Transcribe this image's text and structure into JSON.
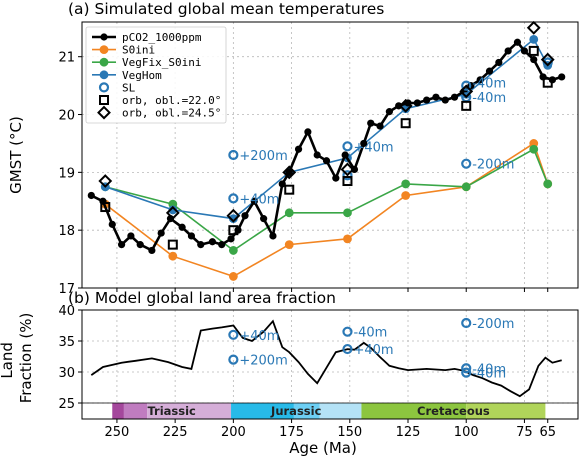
{
  "chart_data": [
    {
      "type": "line",
      "title": "(a) Simulated global mean temperatures",
      "ylabel": "GMST (°C)",
      "xlim": [
        265,
        52
      ],
      "ylim": [
        17,
        21.6
      ],
      "x_reversed": true,
      "y_ticks": [
        17,
        18,
        19,
        20,
        21
      ],
      "grid": true,
      "legend_position": "top-left",
      "series": [
        {
          "name": "pCO2_1000ppm",
          "color": "#000000",
          "marker": "circle",
          "kind": "line",
          "x": [
            261,
            256,
            252,
            248,
            244,
            240,
            235,
            231,
            227,
            222,
            218,
            214,
            209,
            205,
            201,
            198,
            195,
            191,
            187,
            183,
            179,
            176,
            172,
            168,
            164,
            160,
            156,
            152,
            148,
            144,
            141,
            137,
            133,
            129,
            125,
            121,
            117,
            113,
            109,
            105,
            101,
            98,
            94,
            90,
            86,
            82,
            78,
            75,
            71,
            67,
            63,
            59
          ],
          "y": [
            18.6,
            18.5,
            18.1,
            17.75,
            17.9,
            17.75,
            17.65,
            17.95,
            18.2,
            18.05,
            17.9,
            17.75,
            17.8,
            17.75,
            17.85,
            18.0,
            18.25,
            18.5,
            18.2,
            17.9,
            18.8,
            19.0,
            19.4,
            19.7,
            19.3,
            19.2,
            18.9,
            19.3,
            19.05,
            19.5,
            19.85,
            19.8,
            20.05,
            20.15,
            20.2,
            20.2,
            20.25,
            20.3,
            20.25,
            20.3,
            20.4,
            20.5,
            20.6,
            20.75,
            20.9,
            21.1,
            21.25,
            21.1,
            20.95,
            20.65,
            20.6,
            20.65
          ]
        },
        {
          "name": "S0ini",
          "color": "#f28522",
          "marker": "circle",
          "kind": "line",
          "x": [
            255,
            226,
            200,
            176,
            151,
            126,
            100,
            71,
            65
          ],
          "y": [
            18.45,
            17.55,
            17.2,
            17.75,
            17.85,
            18.6,
            18.75,
            19.5,
            18.8
          ]
        },
        {
          "name": "VegFix_S0ini",
          "color": "#3aa647",
          "marker": "circle",
          "kind": "line",
          "x": [
            255,
            226,
            200,
            176,
            151,
            126,
            100,
            71,
            65
          ],
          "y": [
            18.75,
            18.45,
            17.65,
            18.3,
            18.3,
            18.8,
            18.75,
            19.4,
            18.8
          ]
        },
        {
          "name": "VegHom",
          "color": "#2a78b5",
          "marker": "circle",
          "kind": "line",
          "x": [
            255,
            226,
            200,
            176,
            151,
            126,
            100,
            71,
            65
          ],
          "y": [
            18.75,
            18.35,
            18.2,
            19.0,
            19.25,
            20.1,
            20.35,
            21.3,
            20.85
          ]
        },
        {
          "name": "SL",
          "color": "#2a78b5",
          "marker": "open-circle",
          "kind": "points",
          "x": [
            200,
            200,
            151,
            151,
            100,
            100,
            100,
            65
          ],
          "y": [
            19.3,
            18.55,
            19.45,
            18.95,
            19.15,
            20.5,
            20.3,
            20.9
          ]
        },
        {
          "name": "orb, obl.=22.0°",
          "color": "#000000",
          "marker": "open-square",
          "kind": "points",
          "x": [
            255,
            226,
            200,
            176,
            151,
            126,
            100,
            71,
            65
          ],
          "y": [
            18.4,
            17.75,
            18.0,
            18.7,
            18.85,
            19.85,
            20.15,
            21.1,
            20.55
          ]
        },
        {
          "name": "orb, obl.=24.5°",
          "color": "#000000",
          "marker": "open-diamond",
          "kind": "points",
          "x": [
            255,
            226,
            200,
            176,
            151,
            126,
            100,
            71,
            65
          ],
          "y": [
            18.85,
            18.3,
            18.25,
            19.0,
            19.05,
            20.15,
            20.4,
            21.5,
            20.95
          ]
        }
      ],
      "annotations": [
        {
          "text": "+200m",
          "x": 200,
          "y": 19.3
        },
        {
          "text": "+40m",
          "x": 200,
          "y": 18.55
        },
        {
          "text": "+40m",
          "x": 151,
          "y": 19.45
        },
        {
          "text": "-200m",
          "x": 100,
          "y": 19.15
        },
        {
          "text": "-40m",
          "x": 100,
          "y": 20.55
        },
        {
          "text": "-40m",
          "x": 100,
          "y": 20.3
        }
      ]
    },
    {
      "type": "line",
      "title": "(b) Model global land area fraction",
      "ylabel": "Land\nFraction (%)",
      "xlabel": "Age (Ma)",
      "xlim": [
        265,
        52
      ],
      "ylim": [
        25,
        40
      ],
      "x_reversed": true,
      "y_ticks": [
        25,
        30,
        35,
        40
      ],
      "x_ticks": [
        250,
        225,
        200,
        175,
        150,
        125,
        100,
        75,
        65
      ],
      "grid": true,
      "series": [
        {
          "name": "",
          "color": "#000000",
          "kind": "line",
          "x": [
            261,
            256,
            248,
            242,
            235,
            228,
            222,
            218,
            214,
            209,
            205,
            200,
            196,
            192,
            187,
            183,
            179,
            176,
            172,
            168,
            164,
            160,
            156,
            151,
            148,
            144,
            141,
            137,
            133,
            129,
            125,
            121,
            117,
            113,
            109,
            105,
            101,
            97,
            93,
            89,
            85,
            81,
            77,
            73,
            69,
            66,
            63,
            59
          ],
          "y": [
            29.5,
            30.8,
            31.5,
            31.8,
            32.2,
            31.6,
            30.8,
            30.5,
            36.7,
            37.0,
            37.2,
            37.5,
            35.5,
            35.0,
            36.5,
            38.2,
            34.0,
            33.2,
            31.6,
            29.7,
            28.2,
            30.7,
            33.2,
            33.7,
            33.6,
            34.7,
            33.9,
            32.4,
            31.0,
            30.6,
            30.3,
            30.4,
            30.5,
            30.4,
            30.3,
            30.5,
            30.2,
            29.5,
            29.0,
            28.3,
            27.8,
            26.9,
            26.1,
            27.2,
            31.0,
            32.3,
            31.5,
            31.9
          ]
        },
        {
          "name": "SL",
          "color": "#2a78b5",
          "marker": "open-circle",
          "kind": "points",
          "x": [
            200,
            200,
            151,
            151,
            100,
            100,
            100
          ],
          "y": [
            36.0,
            32.0,
            36.5,
            33.7,
            37.9,
            30.6,
            29.9
          ]
        }
      ],
      "annotations": [
        {
          "text": "+40m",
          "x": 200,
          "y": 36.0
        },
        {
          "text": "+200m",
          "x": 200,
          "y": 32.0
        },
        {
          "text": "-40m",
          "x": 151,
          "y": 36.5
        },
        {
          "text": "+40m",
          "x": 151,
          "y": 33.7
        },
        {
          "text": "-200m",
          "x": 100,
          "y": 37.9
        },
        {
          "text": "-40m",
          "x": 100,
          "y": 30.6
        },
        {
          "text": "-40m",
          "x": 100,
          "y": 29.9
        }
      ],
      "periods": [
        {
          "name": "",
          "start": 252,
          "end": 247,
          "color": "#a4479c"
        },
        {
          "name": "",
          "start": 247,
          "end": 237,
          "color": "#c07cc0"
        },
        {
          "name": "Triassic",
          "start": 237,
          "end": 201,
          "color": "#d5aed8"
        },
        {
          "name": "",
          "start": 201,
          "end": 174,
          "color": "#28bae8"
        },
        {
          "name": "Jurassic",
          "start": 174,
          "end": 163,
          "color": "#6dcff4"
        },
        {
          "name": "",
          "start": 163,
          "end": 145,
          "color": "#b4e2f6"
        },
        {
          "name": "Cretaceous",
          "start": 145,
          "end": 100,
          "color": "#8cc53f"
        },
        {
          "name": "",
          "start": 100,
          "end": 66,
          "color": "#b0d45a"
        }
      ]
    }
  ]
}
